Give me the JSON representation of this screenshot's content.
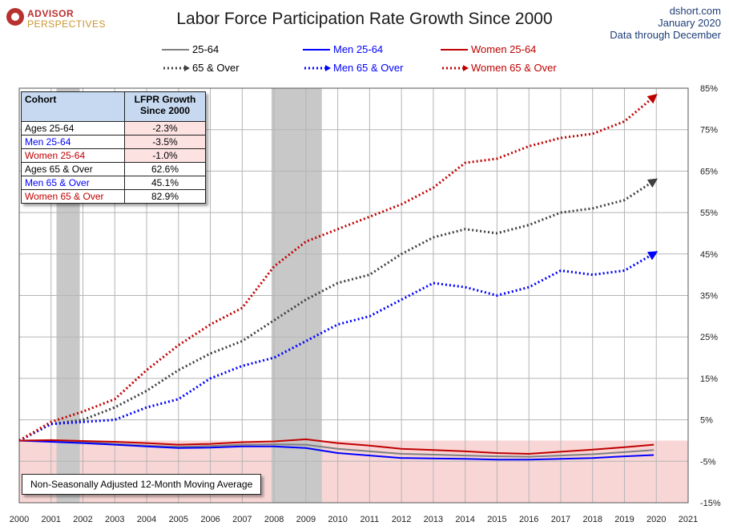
{
  "logo": {
    "line1": "ADVISOR",
    "line2": "PERSPECTIVES"
  },
  "source": {
    "line1": "dshort.com",
    "line2": "January 2020",
    "line3": "Data through December"
  },
  "table": {
    "headers": [
      "Cohort",
      "LFPR Growth Since 2000"
    ],
    "rows": [
      {
        "cohort": "Ages 25-64",
        "value": "-2.3%",
        "color": "#000000"
      },
      {
        "cohort": "Men 25-64",
        "value": "-3.5%",
        "color": "#0000ff"
      },
      {
        "cohort": "Women 25-64",
        "value": "-1.0%",
        "color": "#c00000"
      },
      {
        "cohort": "Ages 65 & Over",
        "value": "62.6%",
        "color": "#000000"
      },
      {
        "cohort": "Men 65 & Over",
        "value": "45.1%",
        "color": "#0000ff"
      },
      {
        "cohort": "Women 65 & Over",
        "value": "82.9%",
        "color": "#c00000"
      }
    ]
  },
  "note": "Non-Seasonally Adjusted 12-Month Moving Average",
  "chart_data": {
    "type": "line",
    "title": "Labor Force Participation Rate Growth Since 2000",
    "xlabel": "",
    "ylabel": "",
    "x_ticks": [
      "2000",
      "2001",
      "2002",
      "2003",
      "2004",
      "2005",
      "2006",
      "2007",
      "2008",
      "2009",
      "2010",
      "2011",
      "2012",
      "2013",
      "2014",
      "2015",
      "2016",
      "2017",
      "2018",
      "2019",
      "2020",
      "2021"
    ],
    "y_ticks": [
      "85%",
      "75%",
      "65%",
      "55%",
      "45%",
      "35%",
      "25%",
      "15%",
      "5%",
      "-5%",
      "-15%"
    ],
    "xlim": [
      2000,
      2021
    ],
    "ylim": [
      -15,
      85
    ],
    "y_axis_side": "right",
    "grid": true,
    "legend_position": "top",
    "recessions": [
      [
        2001.17,
        2001.9
      ],
      [
        2007.92,
        2009.5
      ]
    ],
    "negative_region_color": "#f9d6d6",
    "recession_color": "#c8c8c8",
    "series": [
      {
        "name": "25-64",
        "style": "solid",
        "color": "#808080",
        "x": [
          2000,
          2001,
          2002,
          2003,
          2004,
          2005,
          2006,
          2007,
          2008,
          2009,
          2010,
          2011,
          2012,
          2013,
          2014,
          2015,
          2016,
          2017,
          2018,
          2019,
          2019.92
        ],
        "y": [
          0,
          -0.2,
          -0.4,
          -0.8,
          -1.2,
          -1.5,
          -1.3,
          -1.0,
          -0.9,
          -1.0,
          -2.0,
          -2.6,
          -3.2,
          -3.4,
          -3.6,
          -3.8,
          -3.9,
          -3.6,
          -3.3,
          -2.8,
          -2.3
        ]
      },
      {
        "name": "Men 25-64",
        "style": "solid",
        "color": "#0000ff",
        "x": [
          2000,
          2001,
          2002,
          2003,
          2004,
          2005,
          2006,
          2007,
          2008,
          2009,
          2010,
          2011,
          2012,
          2013,
          2014,
          2015,
          2016,
          2017,
          2018,
          2019,
          2019.92
        ],
        "y": [
          0,
          -0.3,
          -0.6,
          -1.0,
          -1.4,
          -1.8,
          -1.7,
          -1.4,
          -1.4,
          -1.8,
          -3.0,
          -3.6,
          -4.2,
          -4.3,
          -4.4,
          -4.6,
          -4.6,
          -4.4,
          -4.2,
          -3.8,
          -3.5
        ]
      },
      {
        "name": "Women 25-64",
        "style": "solid",
        "color": "#c00000",
        "x": [
          2000,
          2001,
          2002,
          2003,
          2004,
          2005,
          2006,
          2007,
          2008,
          2009,
          2010,
          2011,
          2012,
          2013,
          2014,
          2015,
          2016,
          2017,
          2018,
          2019,
          2019.92
        ],
        "y": [
          0,
          0.1,
          -0.1,
          -0.3,
          -0.6,
          -1.0,
          -0.8,
          -0.4,
          -0.2,
          0.3,
          -0.6,
          -1.2,
          -2.0,
          -2.3,
          -2.6,
          -3.0,
          -3.2,
          -2.7,
          -2.2,
          -1.6,
          -1.0
        ]
      },
      {
        "name": "65 & Over",
        "style": "dotted",
        "color": "#404040",
        "x": [
          2000,
          2001,
          2002,
          2003,
          2004,
          2005,
          2006,
          2007,
          2008,
          2009,
          2010,
          2011,
          2012,
          2013,
          2014,
          2015,
          2016,
          2017,
          2018,
          2019,
          2019.92
        ],
        "y": [
          0,
          4.0,
          5.0,
          8.0,
          12.0,
          17.0,
          21.0,
          24.0,
          29.0,
          34.0,
          38.0,
          40.0,
          45.0,
          49.0,
          51.0,
          50.0,
          52.0,
          55.0,
          56.0,
          58.0,
          62.6
        ]
      },
      {
        "name": "Men 65 & Over",
        "style": "dotted",
        "color": "#0000ff",
        "x": [
          2000,
          2001,
          2002,
          2003,
          2004,
          2005,
          2006,
          2007,
          2008,
          2009,
          2010,
          2011,
          2012,
          2013,
          2014,
          2015,
          2016,
          2017,
          2018,
          2019,
          2019.92
        ],
        "y": [
          0,
          4.0,
          4.5,
          5.0,
          8.0,
          10.0,
          15.0,
          18.0,
          20.0,
          24.0,
          28.0,
          30.0,
          34.0,
          38.0,
          37.0,
          35.0,
          37.0,
          41.0,
          40.0,
          41.0,
          45.1
        ]
      },
      {
        "name": "Women 65 & Over",
        "style": "dotted",
        "color": "#c00000",
        "x": [
          2000,
          2001,
          2002,
          2003,
          2004,
          2005,
          2006,
          2007,
          2008,
          2009,
          2010,
          2011,
          2012,
          2013,
          2014,
          2015,
          2016,
          2017,
          2018,
          2019,
          2019.92
        ],
        "y": [
          0,
          4.5,
          7.0,
          10.0,
          17.0,
          23.0,
          28.0,
          32.0,
          42.0,
          48.0,
          51.0,
          54.0,
          57.0,
          61.0,
          67.0,
          68.0,
          71.0,
          73.0,
          74.0,
          77.0,
          82.9
        ]
      }
    ]
  }
}
